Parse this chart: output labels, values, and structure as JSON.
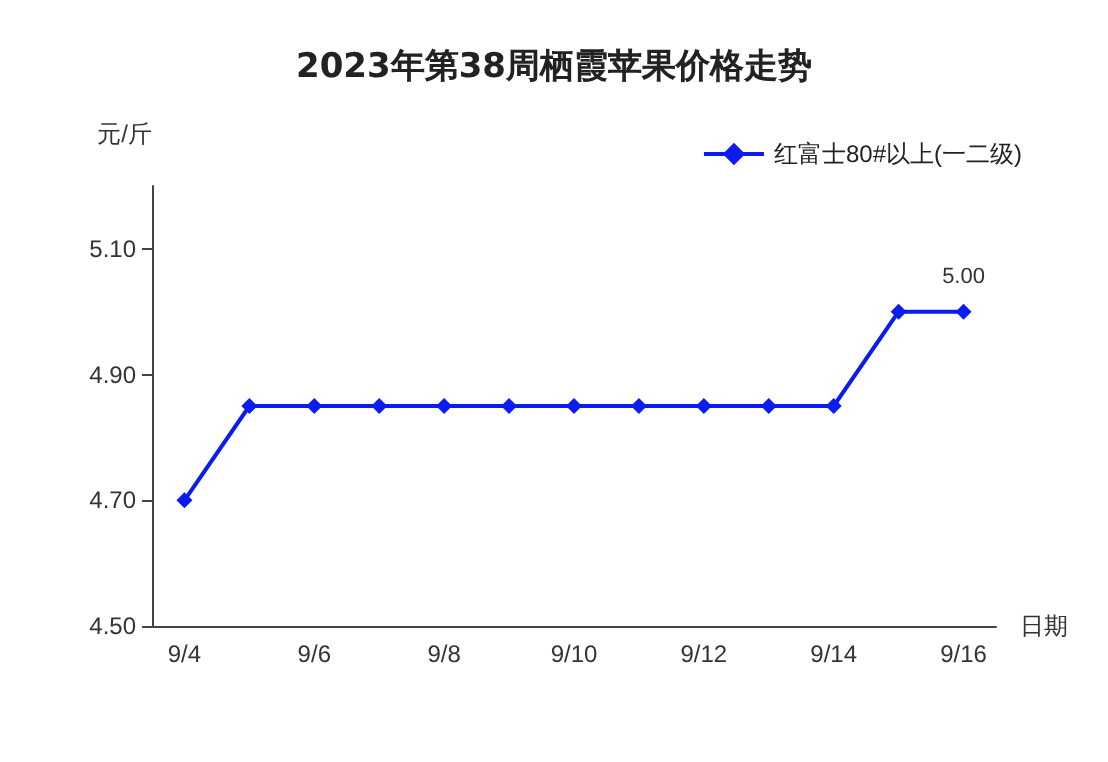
{
  "chart_data": {
    "type": "line",
    "title": "2023年第38周栖霞苹果价格走势",
    "xlabel": "日期",
    "ylabel": "元/斤",
    "categories": [
      "9/4",
      null,
      "9/6",
      null,
      "9/8",
      null,
      "9/10",
      null,
      "9/12",
      null,
      "9/14",
      null,
      "9/16"
    ],
    "series": [
      {
        "name": "红富士80#以上(一二级)",
        "color": "#0a1cf0",
        "values": [
          4.7,
          4.85,
          4.85,
          4.85,
          4.85,
          4.85,
          4.85,
          4.85,
          4.85,
          4.85,
          4.85,
          5.0,
          5.0
        ],
        "value_labels": [
          null,
          null,
          null,
          null,
          null,
          null,
          null,
          null,
          null,
          null,
          null,
          null,
          "5.00"
        ]
      }
    ],
    "ylim": [
      4.5,
      5.2
    ],
    "yticks": [
      {
        "value": 4.5,
        "label": "4.50"
      },
      {
        "value": 4.7,
        "label": "4.70"
      },
      {
        "value": 4.9,
        "label": "4.90"
      },
      {
        "value": 5.1,
        "label": "5.10"
      }
    ],
    "legend": "top right",
    "marker": "diamond",
    "line_style": "solid",
    "grid": false
  }
}
